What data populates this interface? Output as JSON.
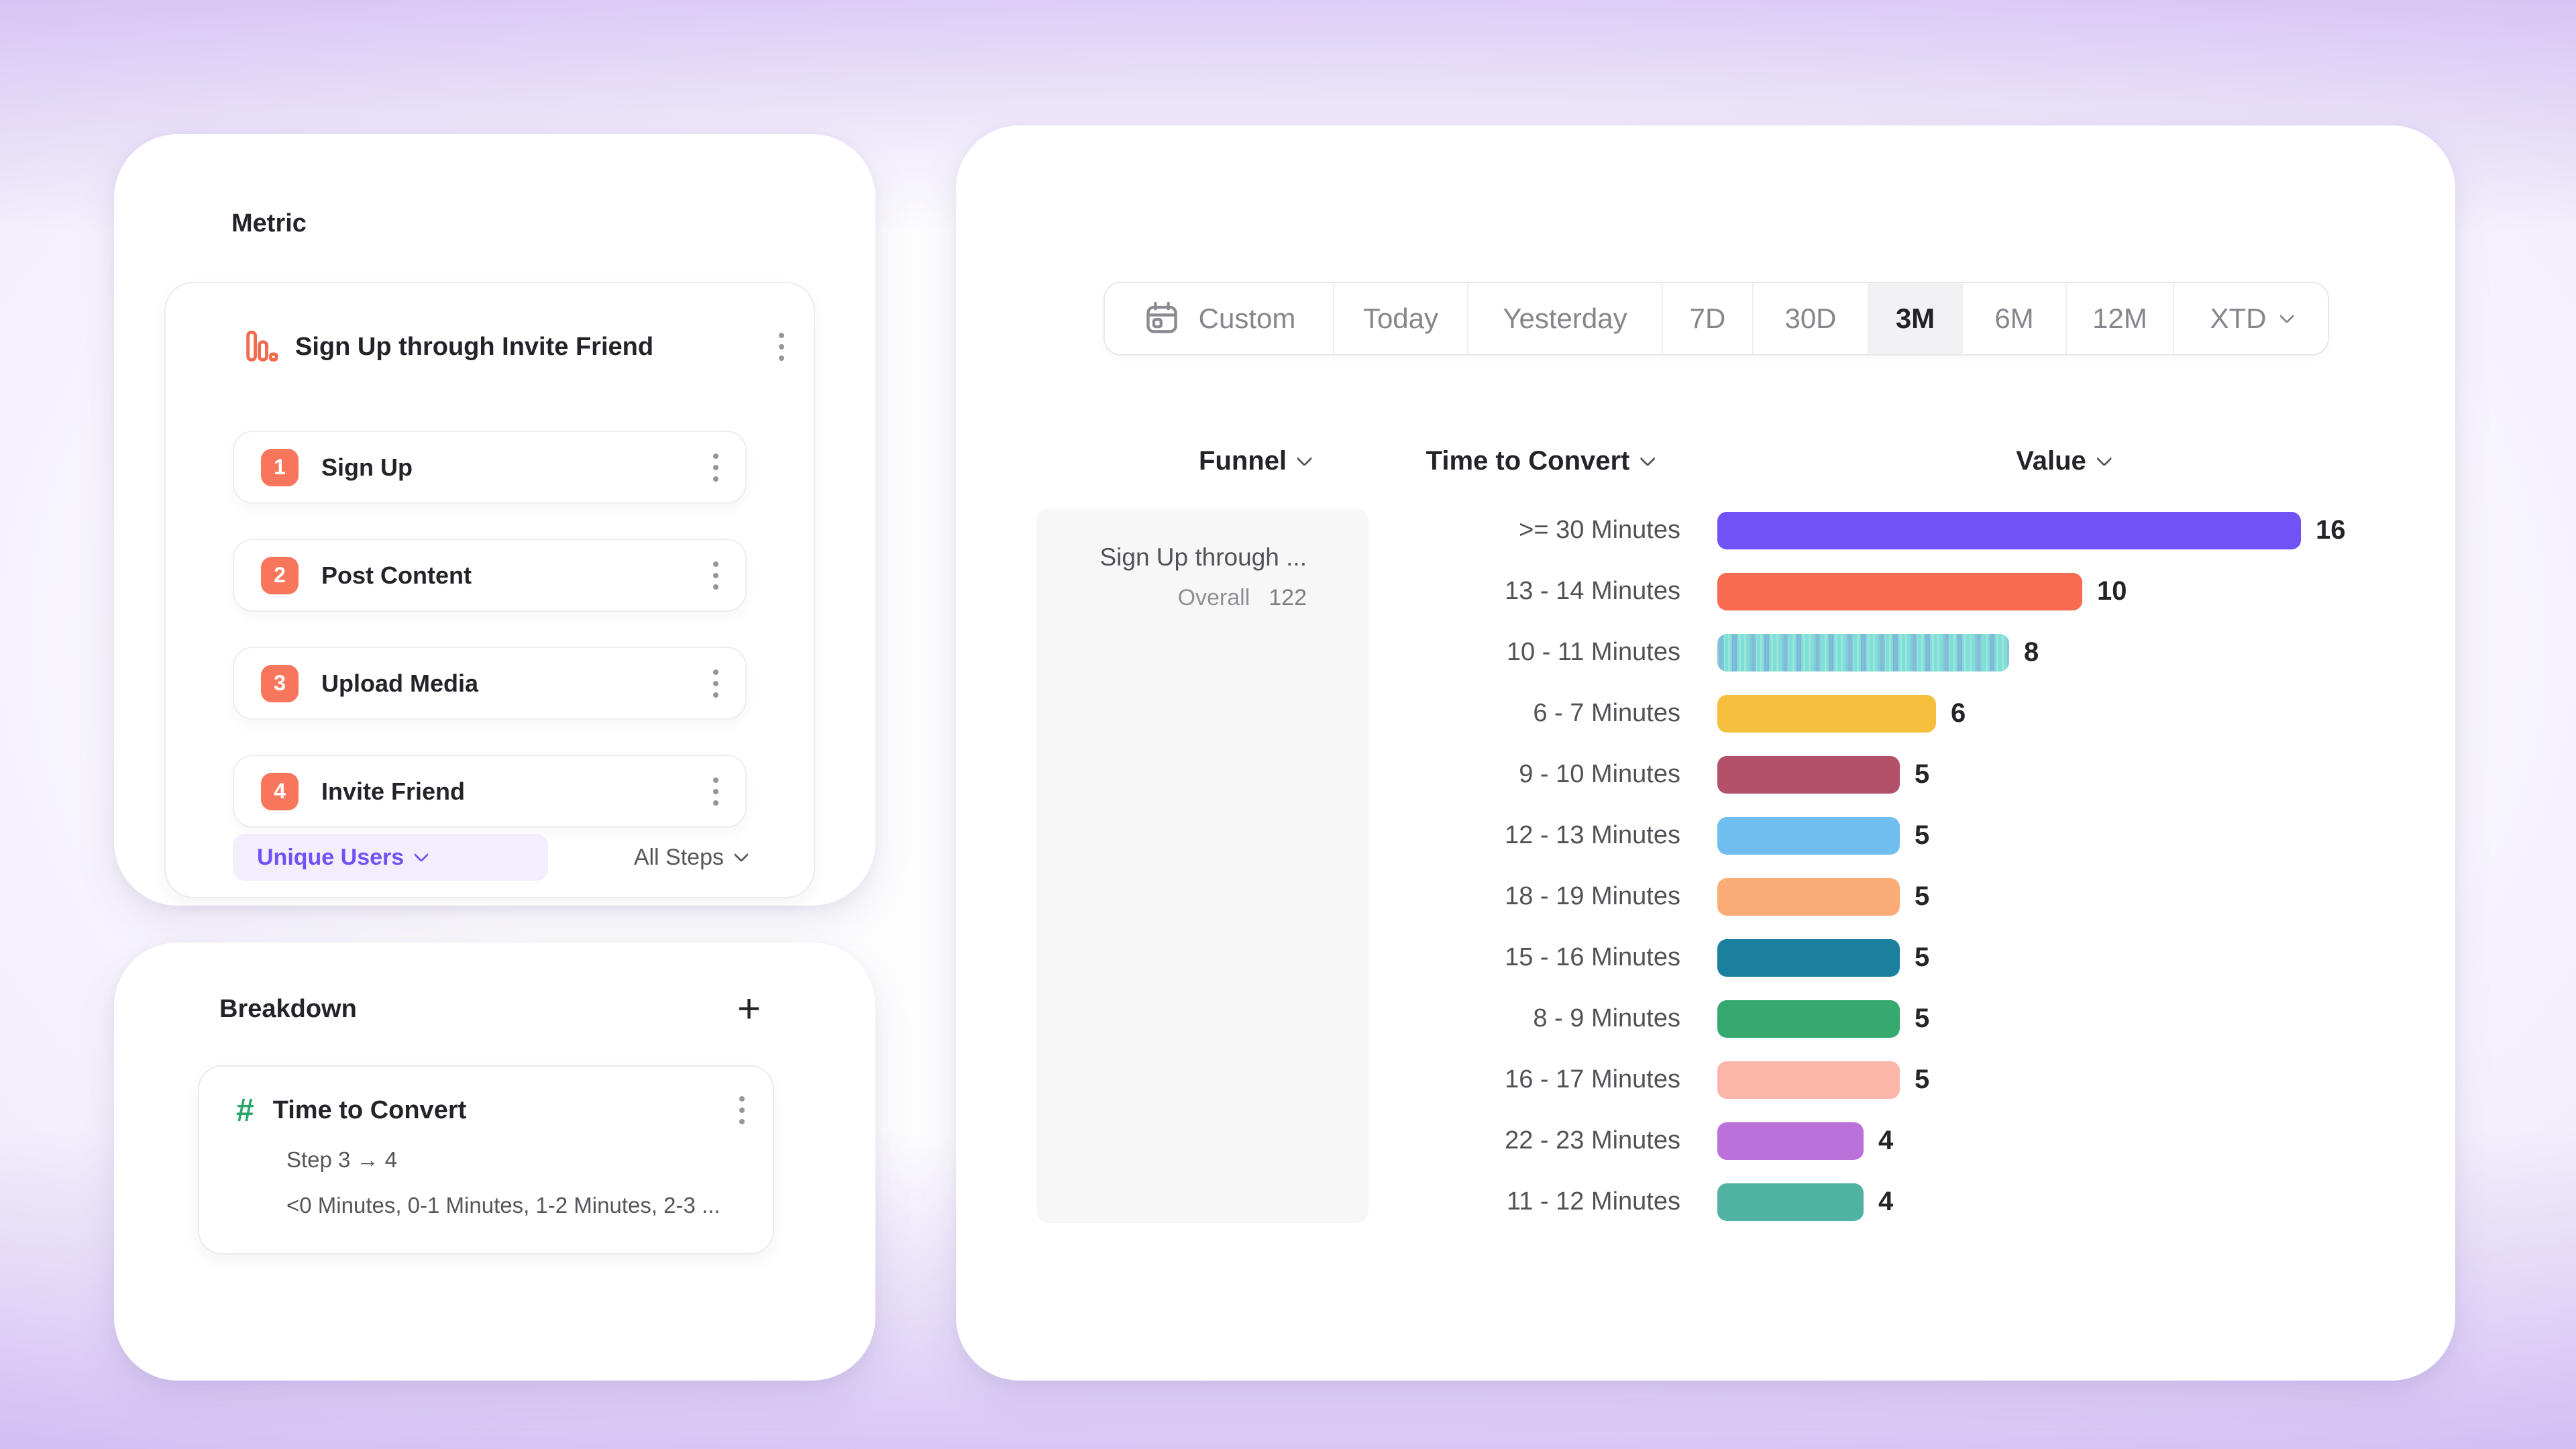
{
  "metric_panel": {
    "title": "Metric",
    "widget": {
      "icon": "bar-chart-icon",
      "name": "Sign Up through Invite Friend",
      "steps": [
        {
          "num": "1",
          "label": "Sign Up"
        },
        {
          "num": "2",
          "label": "Post Content"
        },
        {
          "num": "3",
          "label": "Upload Media"
        },
        {
          "num": "4",
          "label": "Invite Friend"
        }
      ],
      "counting_label": "Unique Users",
      "scope_label": "All Steps",
      "badge_color": "#F8765C",
      "pill_bg": "#F3EEFD",
      "pill_text_color": "#7150F5"
    }
  },
  "breakdown_panel": {
    "title": "Breakdown",
    "add_label": "+",
    "item": {
      "icon": "hash-icon",
      "icon_color": "#2BA66B",
      "name": "Time to Convert",
      "step_range": "Step 3 → 4",
      "buckets": "<0 Minutes, 0-1 Minutes, 1-2 Minutes, 2-3 ..."
    }
  },
  "toolbar": {
    "date_ranges": [
      "Custom",
      "Today",
      "Yesterday",
      "7D",
      "30D",
      "3M",
      "6M",
      "12M",
      "XTD"
    ],
    "selected": "3M",
    "calendar_icon_on": "Custom",
    "chevron_on": "XTD"
  },
  "report": {
    "columns": [
      "Funnel",
      "Time to Convert",
      "Value"
    ],
    "funnel_cell": {
      "title": "Sign Up through ...",
      "overall_label": "Overall",
      "overall_value": "122"
    }
  },
  "chart_data": {
    "type": "bar",
    "orientation": "horizontal",
    "title": "Time to Convert breakdown of Sign Up through Invite Friend",
    "categories": [
      ">= 30 Minutes",
      "13 - 14 Minutes",
      "10 - 11 Minutes",
      "6 - 7 Minutes",
      "9 - 10 Minutes",
      "12 - 13 Minutes",
      "18 - 19 Minutes",
      "15 - 16 Minutes",
      "8 - 9 Minutes",
      "16 - 17 Minutes",
      "22 - 23 Minutes",
      "11 - 12 Minutes"
    ],
    "values": [
      16,
      10,
      8,
      6,
      5,
      5,
      5,
      5,
      5,
      5,
      4,
      4
    ],
    "colors": [
      "#7152F5",
      "#F96B50",
      "#7DDFD6",
      "#F6BE3D",
      "#B25168",
      "#70BDF0",
      "#FBAD75",
      "#1B7F9E",
      "#35A96F",
      "#FBB5A9",
      "#BB70DA",
      "#50B3A2"
    ],
    "textured_index": 2,
    "xlim": [
      0,
      16
    ],
    "legend": "none",
    "grid": "off"
  }
}
